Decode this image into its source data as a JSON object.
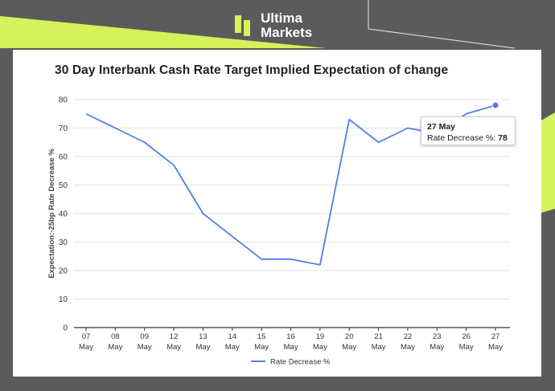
{
  "brand": {
    "name_line1": "Ultima",
    "name_line2": "Markets",
    "colors": {
      "accent": "#d4f25a",
      "dark": "#5b5b5b"
    }
  },
  "tooltip": {
    "date": "27 May",
    "series_label": "Rate Decrease %:",
    "value": "78"
  },
  "chart_data": {
    "type": "line",
    "title": "30 Day Interbank Cash Rate Target Implied Expectation of change",
    "xlabel": "",
    "ylabel": "Expectation:-25bp Rate Decrease %",
    "ylim": [
      0,
      80
    ],
    "yticks": [
      0,
      10,
      20,
      30,
      40,
      50,
      60,
      70,
      80
    ],
    "grid": true,
    "legend_position": "bottom",
    "categories": [
      [
        "07",
        "May"
      ],
      [
        "08",
        "May"
      ],
      [
        "09",
        "May"
      ],
      [
        "12",
        "May"
      ],
      [
        "13",
        "May"
      ],
      [
        "14",
        "May"
      ],
      [
        "15",
        "May"
      ],
      [
        "16",
        "May"
      ],
      [
        "19",
        "May"
      ],
      [
        "20",
        "May"
      ],
      [
        "21",
        "May"
      ],
      [
        "22",
        "May"
      ],
      [
        "23",
        "May"
      ],
      [
        "26",
        "May"
      ],
      [
        "27",
        "May"
      ]
    ],
    "series": [
      {
        "name": "Rate Decrease %",
        "color": "#4f7fe8",
        "values": [
          75,
          70,
          65,
          57,
          40,
          32,
          24,
          24,
          22,
          73,
          65,
          70,
          68,
          75,
          78
        ]
      }
    ]
  }
}
